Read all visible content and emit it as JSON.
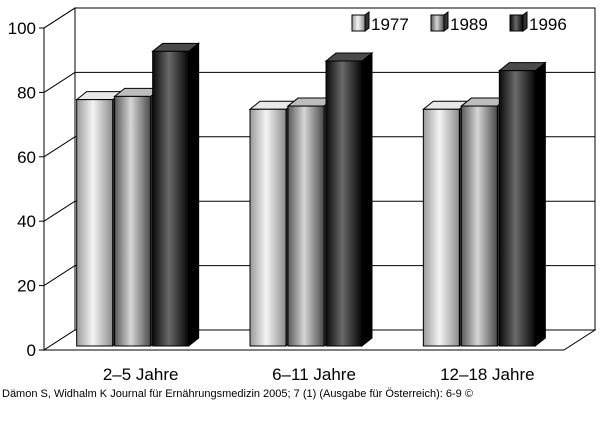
{
  "chart_data": {
    "type": "bar",
    "style": "3d-grouped",
    "categories": [
      "2–5 Jahre",
      "6–11 Jahre",
      "12–18 Jahre"
    ],
    "series": [
      {
        "name": "1977",
        "values": [
          79,
          76,
          76
        ],
        "color": "#b0b0b0"
      },
      {
        "name": "1989",
        "values": [
          80,
          77,
          77
        ],
        "color": "#8a8a8a"
      },
      {
        "name": "1996",
        "values": [
          94,
          91,
          88
        ],
        "color": "#202020"
      }
    ],
    "y_ticks": [
      "0",
      "20",
      "40",
      "60",
      "80",
      "100"
    ],
    "ylim": [
      0,
      100
    ],
    "grid": true,
    "legend_position": "top-right"
  },
  "caption": {
    "text": "Dämon S, Widhalm K Journal für Ernährungsmedizin 2005; 7 (1) (Ausgabe für Österreich): 6-9 ©"
  }
}
